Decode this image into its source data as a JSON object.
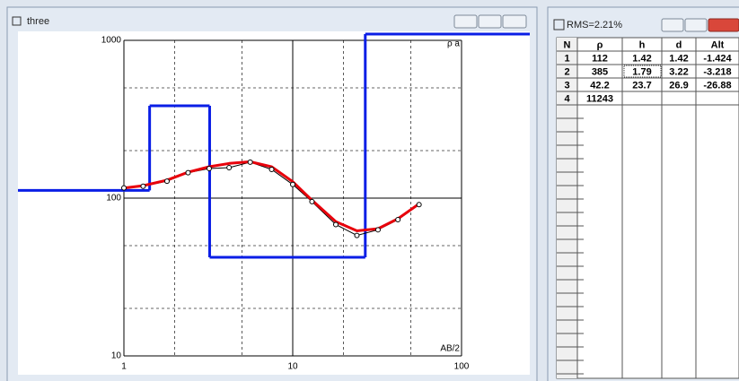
{
  "chart_window": {
    "title": "three"
  },
  "chart_data": {
    "type": "line",
    "xlog": true,
    "ylog": true,
    "xlabel": "AB/2",
    "ylabel": "ρ a",
    "x": [
      1,
      1.3,
      1.8,
      2.4,
      3.2,
      4.2,
      5.6,
      7.5,
      10,
      13,
      18,
      24,
      32,
      42,
      56
    ],
    "series": [
      {
        "color": "#000000",
        "marker": "circle",
        "values": [
          116,
          119,
          128,
          145,
          154,
          156,
          169,
          152,
          122,
          95,
          68,
          58,
          63,
          73,
          91
        ]
      },
      {
        "color": "#e8000b",
        "values": [
          116,
          120,
          130,
          146,
          158,
          166,
          170,
          158,
          127,
          97,
          71,
          62,
          64,
          74,
          92
        ]
      }
    ],
    "model_color": "#0a1ee6",
    "xlim": [
      1,
      100
    ],
    "ylim": [
      10,
      1000
    ],
    "xticks": [
      1,
      10,
      100
    ],
    "yticks": [
      10,
      100,
      1000
    ],
    "minor_xticks": [
      2,
      5,
      20,
      50
    ],
    "minor_yticks": [
      20,
      50,
      200,
      500
    ],
    "grid": true
  },
  "table_window": {
    "title": "RMS=2.21%",
    "columns": [
      "N",
      "ρ",
      "h",
      "d",
      "Alt"
    ],
    "rows": [
      [
        1,
        112,
        1.42,
        1.42,
        -1.424
      ],
      [
        2,
        385,
        1.79,
        3.22,
        -3.218
      ],
      [
        3,
        42.2,
        23.7,
        26.9,
        -26.88
      ],
      [
        4,
        11243
      ]
    ]
  }
}
